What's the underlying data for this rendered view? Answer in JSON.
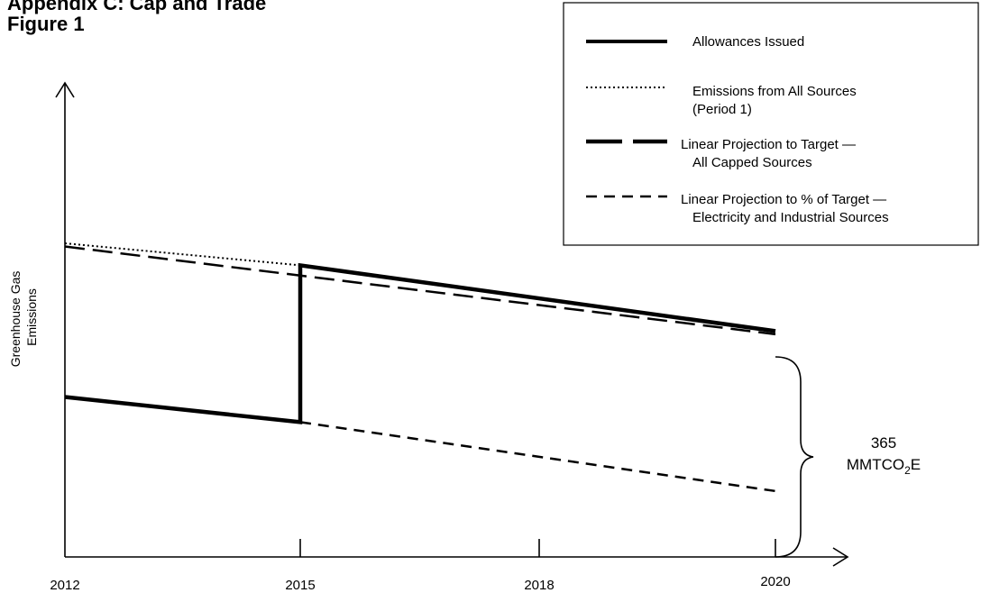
{
  "page": {
    "heading_line1": "Appendix C: Cap and Trade",
    "heading_line2": "Figure 1"
  },
  "chart_data": {
    "type": "line",
    "title": "",
    "xlabel": "",
    "ylabel": "Greenhouse Gas\nEmissions",
    "x_ticks": [
      "2012",
      "2015",
      "2018",
      "2020"
    ],
    "grid": false,
    "legend_position": "top-right",
    "y_scale": "relative (no numeric ticks)",
    "annotation": {
      "value": "365",
      "unit_prefix": "MMTCO",
      "unit_subscript": "2",
      "unit_suffix": "E",
      "spans": "2020 gap between emissions level and axis"
    },
    "series": [
      {
        "name": "Allowances Issued",
        "style": "solid-thick",
        "points": [
          {
            "x": "2012",
            "y": 0.51
          },
          {
            "x": "2015",
            "y": 0.43
          },
          {
            "x": "2015",
            "y": 0.93
          },
          {
            "x": "2020",
            "y": 0.72
          }
        ]
      },
      {
        "name": "Emissions from All Sources",
        "name_line2": "(Period 1)",
        "style": "dotted",
        "points": [
          {
            "x": "2012",
            "y": 1.0
          },
          {
            "x": "2015",
            "y": 0.93
          }
        ]
      },
      {
        "name": "Linear Projection to Target —",
        "name_line2": "All Capped Sources",
        "style": "long-dash-thick",
        "points": [
          {
            "x": "2012",
            "y": 0.99
          },
          {
            "x": "2020",
            "y": 0.71
          }
        ]
      },
      {
        "name": "Linear Projection to % of Target —",
        "name_line2": "Electricity and Industrial Sources",
        "style": "dash",
        "points": [
          {
            "x": "2015",
            "y": 0.43
          },
          {
            "x": "2020",
            "y": 0.21
          }
        ]
      }
    ],
    "colors": {
      "line": "#000000",
      "background": "#ffffff"
    }
  }
}
